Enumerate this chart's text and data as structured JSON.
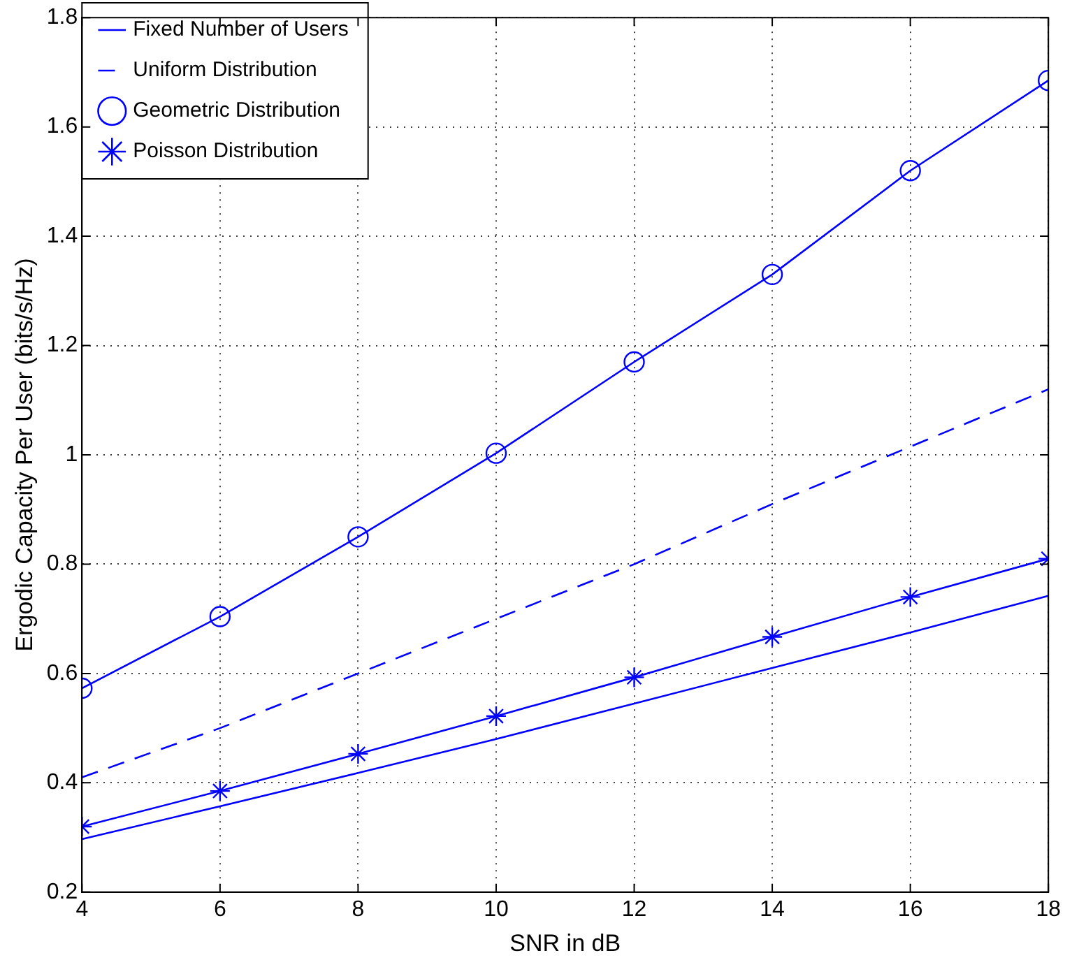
{
  "chart_data": {
    "type": "line",
    "xlabel": "SNR in dB",
    "ylabel": "Ergodic Capacity Per User (bits/s/Hz)",
    "x": [
      4,
      6,
      8,
      10,
      12,
      14,
      16,
      18
    ],
    "series": [
      {
        "name": "Fixed Number of Users",
        "color": "#0000ff",
        "marker": "none",
        "line_style": "solid",
        "values": [
          0.297,
          0.357,
          0.418,
          0.48,
          0.545,
          0.61,
          0.675,
          0.742
        ]
      },
      {
        "name": "Uniform Distribution",
        "color": "#0000ff",
        "marker": "none",
        "line_style": "dashed",
        "values": [
          0.41,
          0.5,
          0.6,
          0.7,
          0.8,
          0.91,
          1.015,
          1.12
        ]
      },
      {
        "name": "Geometric Distribution",
        "color": "#0000ff",
        "marker": "circle",
        "line_style": "solid",
        "values": [
          0.573,
          0.704,
          0.85,
          1.003,
          1.17,
          1.33,
          1.52,
          1.685
        ]
      },
      {
        "name": "Poisson Distribution",
        "color": "#0000ff",
        "marker": "cross",
        "line_style": "solid",
        "values": [
          0.32,
          0.385,
          0.453,
          0.522,
          0.593,
          0.667,
          0.74,
          0.81
        ]
      }
    ],
    "xlim": [
      4,
      18
    ],
    "xticks": [
      4,
      6,
      8,
      10,
      12,
      14,
      16,
      18
    ],
    "ylim": [
      0.2,
      1.8
    ],
    "yticks": [
      0.2,
      0.4,
      0.6,
      0.8,
      1,
      1.2,
      1.4,
      1.6,
      1.8
    ],
    "grid": true,
    "legend": "top left"
  }
}
